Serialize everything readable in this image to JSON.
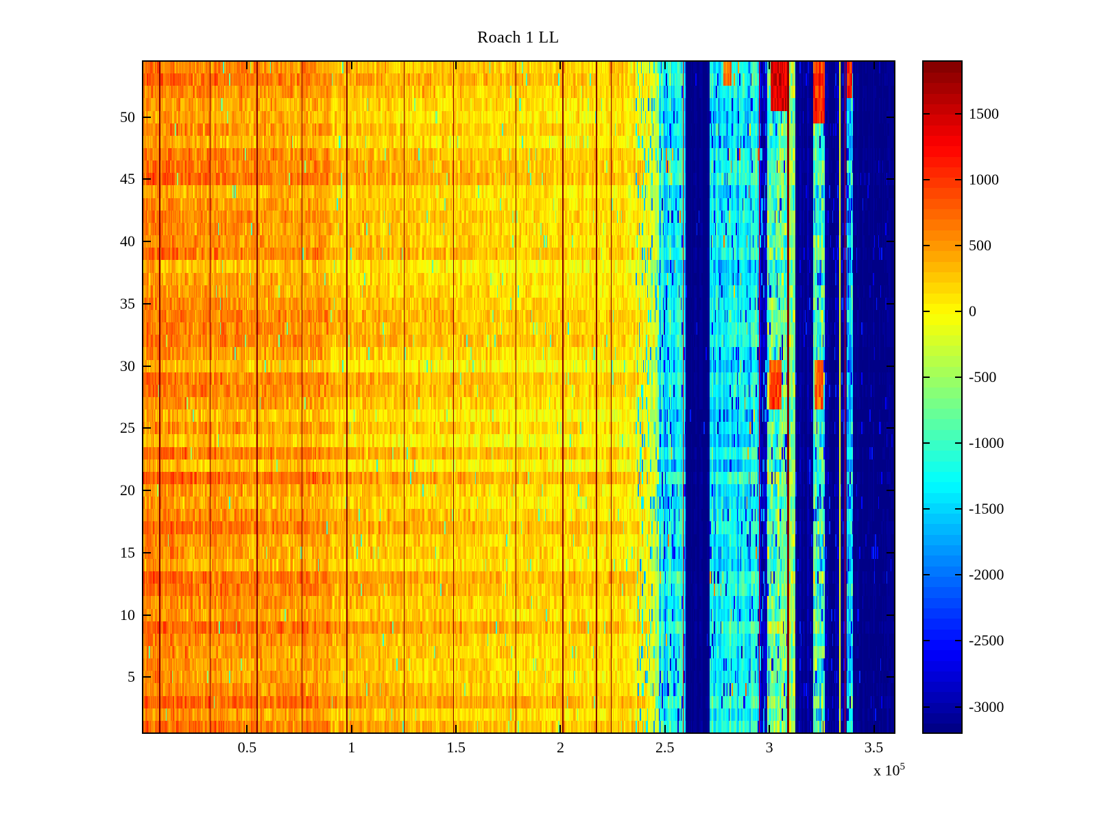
{
  "chart_data": {
    "type": "heatmap",
    "title": "Roach 1 LL",
    "colormap": "jet",
    "seed": 42,
    "columns": 720,
    "x_axis": {
      "range": [
        0,
        3.6
      ],
      "ticks": [
        0.5,
        1,
        1.5,
        2,
        2.5,
        3,
        3.5
      ],
      "tick_labels": [
        "0.5",
        "1",
        "1.5",
        "2",
        "2.5",
        "3",
        "3.5"
      ],
      "multiplier_prefix": "x 10",
      "exponent": "5"
    },
    "y_axis": {
      "rows": 54,
      "range": [
        0.5,
        54.5
      ],
      "ticks": [
        5,
        10,
        15,
        20,
        25,
        30,
        35,
        40,
        45,
        50
      ]
    },
    "color_axis": {
      "range": [
        -3200,
        1900
      ],
      "levels": 64,
      "colorbar_ticks": [
        1500,
        1000,
        500,
        0,
        -500,
        -1000,
        -1500,
        -2000,
        -2500,
        -3000
      ],
      "colorbar_tick_labels": [
        "1500",
        "1000",
        "500",
        "0",
        "-500",
        "-1000",
        "-1500",
        "-2000",
        "-2500",
        "-3000"
      ]
    },
    "segments": [
      {
        "x0": 0.0,
        "x1": 0.3,
        "b0": 620,
        "b1": 560,
        "noise": 360,
        "rowAmp": 210,
        "colAmp": 80,
        "speckles": [
          {
            "p": 0.004,
            "v": -700,
            "a": 250
          }
        ]
      },
      {
        "x0": 0.3,
        "x1": 0.9,
        "b0": 560,
        "b1": 470,
        "noise": 360,
        "rowAmp": 200,
        "colAmp": 80,
        "speckles": [
          {
            "p": 0.007,
            "v": -750,
            "a": 250
          }
        ]
      },
      {
        "x0": 0.9,
        "x1": 1.6,
        "b0": 330,
        "b1": 250,
        "noise": 330,
        "rowAmp": 180,
        "colAmp": 80,
        "speckles": [
          {
            "p": 0.013,
            "v": -800,
            "a": 300
          }
        ]
      },
      {
        "x0": 1.6,
        "x1": 2.36,
        "b0": 230,
        "b1": 150,
        "noise": 320,
        "rowAmp": 170,
        "colAmp": 80,
        "speckles": [
          {
            "p": 0.02,
            "v": -800,
            "a": 300
          }
        ]
      },
      {
        "x0": 2.36,
        "x1": 2.47,
        "b0": 50,
        "b1": -250,
        "noise": 380,
        "rowAmp": 160,
        "colAmp": 200,
        "speckles": [
          {
            "p": 0.15,
            "v": -1500,
            "a": 500
          }
        ]
      },
      {
        "x0": 2.47,
        "x1": 2.6,
        "b0": -1250,
        "b1": -1350,
        "noise": 450,
        "rowAmp": 230,
        "colAmp": 350,
        "speckles": [
          {
            "p": 0.08,
            "v": -2600,
            "a": 300
          },
          {
            "p": 0.01,
            "v": 400,
            "a": 300
          }
        ]
      },
      {
        "x0": 2.6,
        "x1": 2.715,
        "b0": -3150,
        "b1": -3150,
        "noise": 60,
        "rowAmp": 25,
        "colAmp": 100,
        "speckles": [
          {
            "p": 0.012,
            "v": -2450,
            "a": 200
          }
        ]
      },
      {
        "x0": 2.715,
        "x1": 2.95,
        "b0": -1300,
        "b1": -1300,
        "noise": 420,
        "rowAmp": 240,
        "colAmp": 350,
        "speckles": [
          {
            "p": 0.07,
            "v": -2700,
            "a": 250
          },
          {
            "p": 0.012,
            "v": 500,
            "a": 350
          }
        ]
      },
      {
        "x0": 2.95,
        "x1": 2.99,
        "b0": -2850,
        "b1": -2850,
        "noise": 280,
        "rowAmp": 80,
        "colAmp": 200,
        "speckles": [
          {
            "p": 0.15,
            "v": -1700,
            "a": 300
          }
        ]
      },
      {
        "x0": 2.99,
        "x1": 3.085,
        "b0": -900,
        "b1": -800,
        "noise": 850,
        "rowAmp": 220,
        "colAmp": 300,
        "speckles": [
          {
            "p": 0.06,
            "v": -2700,
            "a": 250
          }
        ]
      },
      {
        "x0": 3.085,
        "x1": 3.125,
        "b0": -600,
        "b1": -600,
        "noise": 800,
        "rowAmp": 220,
        "colAmp": 150,
        "speckles": []
      },
      {
        "x0": 3.125,
        "x1": 3.21,
        "b0": -3100,
        "b1": -3100,
        "noise": 130,
        "rowAmp": 40,
        "colAmp": 150,
        "speckles": [
          {
            "p": 0.05,
            "v": -2500,
            "a": 250
          }
        ]
      },
      {
        "x0": 3.21,
        "x1": 3.265,
        "b0": -900,
        "b1": -900,
        "noise": 1000,
        "rowAmp": 250,
        "colAmp": 300,
        "speckles": [
          {
            "p": 0.05,
            "v": -2700,
            "a": 200
          }
        ]
      },
      {
        "x0": 3.265,
        "x1": 3.345,
        "b0": -3100,
        "b1": -3100,
        "noise": 130,
        "rowAmp": 40,
        "colAmp": 150,
        "speckles": [
          {
            "p": 0.05,
            "v": -2500,
            "a": 250
          }
        ]
      },
      {
        "x0": 3.345,
        "x1": 3.37,
        "b0": -3100,
        "b1": -3100,
        "noise": 150,
        "rowAmp": 40,
        "colAmp": 150,
        "speckles": [
          {
            "p": 0.1,
            "v": -2400,
            "a": 300
          }
        ]
      },
      {
        "x0": 3.37,
        "x1": 3.4,
        "b0": -1400,
        "b1": -1400,
        "noise": 750,
        "rowAmp": 250,
        "colAmp": 300,
        "speckles": [
          {
            "p": 0.1,
            "v": -2800,
            "a": 200
          }
        ]
      },
      {
        "x0": 3.4,
        "x1": 3.6,
        "b0": -3150,
        "b1": -3150,
        "noise": 90,
        "rowAmp": 30,
        "colAmp": 80,
        "speckles": [
          {
            "p": 0.03,
            "v": -2600,
            "a": 250
          }
        ]
      }
    ],
    "vlines": [
      {
        "x": 0.082,
        "v": 1880,
        "w": 1
      },
      {
        "x": 0.322,
        "v": 1880,
        "w": 1
      },
      {
        "x": 0.549,
        "v": 1880,
        "w": 1
      },
      {
        "x": 0.76,
        "v": 1880,
        "w": 1
      },
      {
        "x": 0.977,
        "v": 1880,
        "w": 1
      },
      {
        "x": 1.25,
        "v": 1880,
        "w": 1
      },
      {
        "x": 1.487,
        "v": 1880,
        "w": 1
      },
      {
        "x": 1.786,
        "v": 1880,
        "w": 1
      },
      {
        "x": 2.013,
        "v": 1880,
        "w": 1
      },
      {
        "x": 2.171,
        "v": 1880,
        "w": 1
      },
      {
        "x": 2.243,
        "v": 1880,
        "w": 1
      },
      {
        "x": 2.589,
        "v": 1350,
        "w": 1
      },
      {
        "x": 2.951,
        "v": 1350,
        "w": 1
      },
      {
        "x": 3.089,
        "v": 1880,
        "w": 2
      },
      {
        "x": 3.338,
        "v": -80,
        "w": 1
      },
      {
        "x": 3.363,
        "v": 1350,
        "w": 1
      }
    ],
    "patches": [
      {
        "x0": 3.01,
        "x1": 3.085,
        "r0": 51,
        "r1": 54,
        "v": 1450,
        "noise": 350
      },
      {
        "x0": 3.21,
        "x1": 3.265,
        "r0": 50,
        "r1": 54,
        "v": 1050,
        "noise": 400
      },
      {
        "x0": 3.0,
        "x1": 3.06,
        "r0": 27,
        "r1": 30,
        "v": 950,
        "noise": 350
      },
      {
        "x0": 3.215,
        "x1": 3.26,
        "r0": 27,
        "r1": 30,
        "v": 750,
        "noise": 350
      },
      {
        "x0": 3.37,
        "x1": 3.395,
        "r0": 52,
        "r1": 54,
        "v": 1150,
        "noise": 300
      },
      {
        "x0": 2.78,
        "x1": 2.82,
        "r0": 53,
        "r1": 54,
        "v": 650,
        "noise": 250
      }
    ]
  }
}
